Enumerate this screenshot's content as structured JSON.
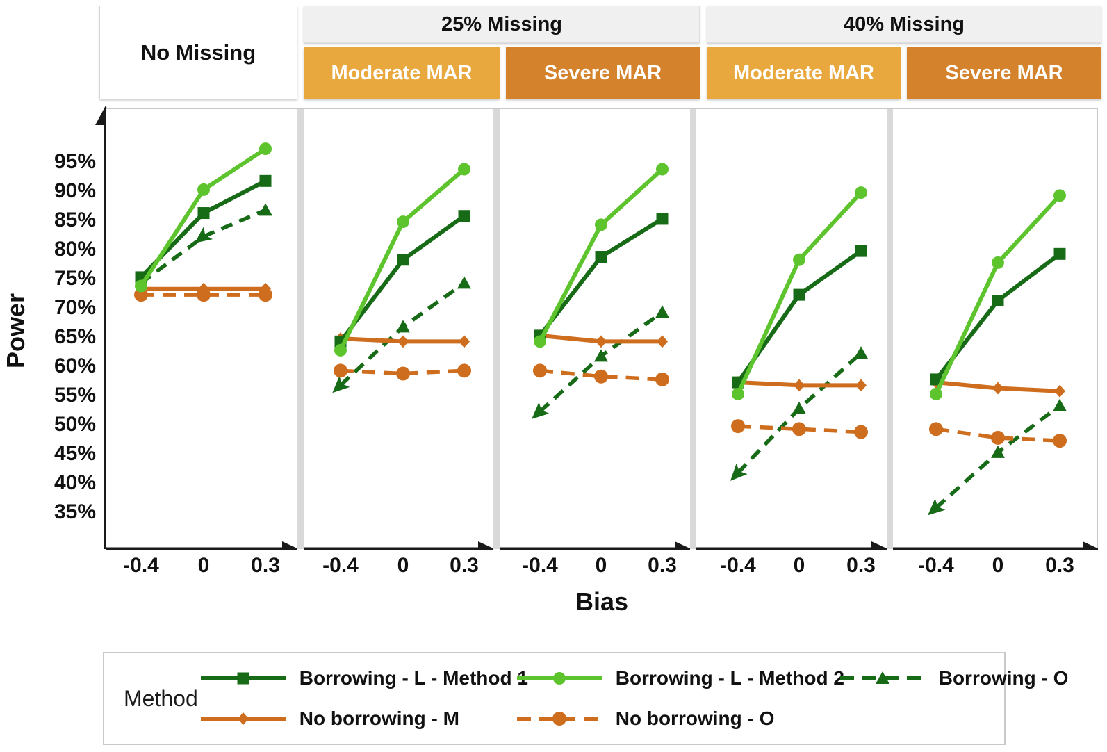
{
  "headers": {
    "no_missing": "No Missing",
    "missing_25": "25% Missing",
    "missing_40": "40% Missing",
    "moderate_mar": "Moderate MAR",
    "severe_mar": "Severe MAR"
  },
  "axes": {
    "ylabel": "Power",
    "xlabel": "Bias",
    "y_tick_labels": [
      "95%",
      "90%",
      "85%",
      "80%",
      "75%",
      "70%",
      "65%",
      "60%",
      "55%",
      "50%",
      "45%",
      "40%",
      "35%"
    ],
    "y_tick_values": [
      95,
      90,
      85,
      80,
      75,
      70,
      65,
      60,
      55,
      50,
      45,
      40,
      35
    ],
    "x_tick_labels": [
      "-0.4",
      "0",
      "0.3"
    ]
  },
  "colors": {
    "dark_green": "#176b17",
    "light_green": "#5dc42e",
    "orange": "#ce6d1d",
    "header_gold": "#e9a83e",
    "header_orange": "#d4822c",
    "header_gray": "#f0f0f0",
    "axis_black": "#1a1a1a",
    "gutter_gray": "#d9d9d9"
  },
  "legend": {
    "title": "Method"
  },
  "chart_data": {
    "type": "line",
    "x": [
      -0.4,
      0,
      0.3
    ],
    "xlabel": "Bias",
    "ylabel": "Power",
    "ylim": [
      29,
      104
    ],
    "grid": false,
    "legend_position": "bottom",
    "series_defs": [
      {
        "id": "bo",
        "name": "Borrowing - O",
        "color": "dark_green",
        "dashed": true,
        "marker": "triangle"
      },
      {
        "id": "nbo",
        "name": "No borrowing - O",
        "color": "orange",
        "dashed": true,
        "marker": "big-circle"
      },
      {
        "id": "nbm",
        "name": "No borrowing - M",
        "color": "orange",
        "dashed": false,
        "marker": "diamond"
      },
      {
        "id": "m1",
        "name": "Borrowing - L - Method 1",
        "color": "dark_green",
        "dashed": false,
        "marker": "square"
      },
      {
        "id": "m2",
        "name": "Borrowing - L - Method 2",
        "color": "light_green",
        "dashed": false,
        "marker": "circle"
      }
    ],
    "legend_order": [
      "m1",
      "m2",
      "bo",
      "nbm",
      "nbo"
    ],
    "facets": [
      {
        "missing": "No Missing",
        "mar": null,
        "values": {
          "m1": [
            75.5,
            86.5,
            92
          ],
          "m2": [
            74,
            90.5,
            97.5
          ],
          "bo": [
            74.5,
            82.5,
            87
          ],
          "nbm": [
            73.5,
            73.5,
            73.5
          ],
          "nbo": [
            72.5,
            72.5,
            72.5
          ]
        },
        "bo_markers": [
          "none",
          "arrow",
          "triangle"
        ]
      },
      {
        "missing": "25% Missing",
        "mar": "Moderate MAR",
        "values": {
          "m1": [
            64.5,
            78.5,
            86
          ],
          "m2": [
            63,
            85,
            94
          ],
          "bo": [
            57,
            67,
            74.5
          ],
          "nbm": [
            65,
            64.5,
            64.5
          ],
          "nbo": [
            59.5,
            59,
            59.5
          ]
        },
        "bo_markers": [
          "arrow",
          "triangle",
          "triangle"
        ]
      },
      {
        "missing": "25% Missing",
        "mar": "Severe MAR",
        "values": {
          "m1": [
            65.5,
            79,
            85.5
          ],
          "m2": [
            64.5,
            84.5,
            94
          ],
          "bo": [
            52.5,
            62,
            69.5
          ],
          "nbm": [
            65.5,
            64.5,
            64.5
          ],
          "nbo": [
            59.5,
            58.5,
            58
          ]
        },
        "bo_markers": [
          "arrow",
          "triangle",
          "triangle"
        ]
      },
      {
        "missing": "40% Missing",
        "mar": "Moderate MAR",
        "values": {
          "m1": [
            57.5,
            72.5,
            80
          ],
          "m2": [
            55.5,
            78.5,
            90
          ],
          "bo": [
            42,
            53,
            62.5
          ],
          "nbm": [
            57.5,
            57,
            57
          ],
          "nbo": [
            50,
            49.5,
            49
          ]
        },
        "bo_markers": [
          "arrow",
          "triangle",
          "triangle"
        ]
      },
      {
        "missing": "40% Missing",
        "mar": "Severe MAR",
        "values": {
          "m1": [
            58,
            71.5,
            79.5
          ],
          "m2": [
            55.5,
            78,
            89.5
          ],
          "bo": [
            36,
            45.5,
            53.5
          ],
          "nbm": [
            57.5,
            56.5,
            56
          ],
          "nbo": [
            49.5,
            48,
            47.5
          ]
        },
        "bo_markers": [
          "arrow",
          "triangle",
          "triangle"
        ]
      }
    ]
  }
}
